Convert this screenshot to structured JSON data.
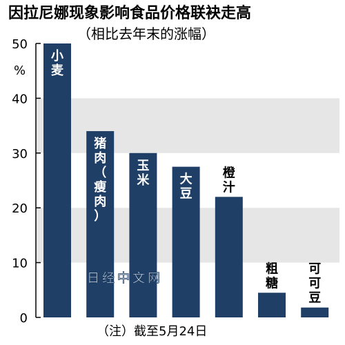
{
  "chart_data": {
    "type": "bar",
    "title": "因拉尼娜现象影响食品价格联袂走高",
    "subtitle": "（相比去年末的涨幅）",
    "ylabel": "%",
    "ylim": [
      0,
      50
    ],
    "yticks": [
      0,
      10,
      20,
      30,
      40,
      50
    ],
    "grid_bands": [
      [
        10,
        20
      ],
      [
        30,
        40
      ]
    ],
    "categories": [
      "小麦",
      "猪肉（瘦肉）",
      "玉米",
      "大豆",
      "橙汁",
      "粗糖",
      "可可豆"
    ],
    "category_display": [
      [
        "小",
        "麦"
      ],
      [
        "猪",
        "肉",
        "（",
        "瘦",
        "肉",
        "）"
      ],
      [
        "玉",
        "米"
      ],
      [
        "大",
        "豆"
      ],
      [
        "橙",
        "汁"
      ],
      [
        "粗",
        "糖"
      ],
      [
        "可",
        "可",
        "豆"
      ]
    ],
    "values": [
      50,
      34,
      30,
      27.5,
      22,
      4.5,
      1.8
    ],
    "label_position": [
      "inside",
      "inside",
      "inside",
      "inside",
      "above",
      "above",
      "above"
    ],
    "note": "（注）截至5月24日",
    "watermark": "日经中文网",
    "colors": {
      "bar": "#1f3f66",
      "band": "#e6e6e6",
      "axis": "#000000",
      "label_inside": "#ffffff",
      "label_above": "#000000"
    }
  }
}
